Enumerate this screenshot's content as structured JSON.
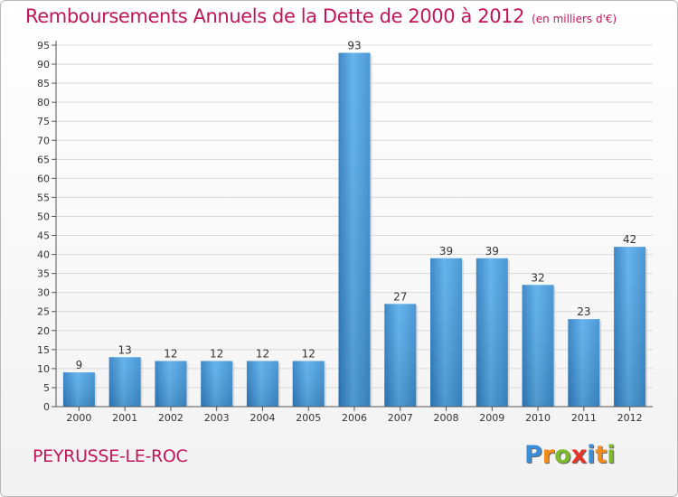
{
  "chart_data": {
    "type": "bar",
    "title": "Remboursements Annuels de la Dette de 2000 à 2012",
    "subtitle": "(en milliers d'€)",
    "categories": [
      "2000",
      "2001",
      "2002",
      "2003",
      "2004",
      "2005",
      "2006",
      "2007",
      "2008",
      "2009",
      "2010",
      "2011",
      "2012"
    ],
    "values": [
      9,
      13,
      12,
      12,
      12,
      12,
      93,
      27,
      39,
      39,
      32,
      23,
      42
    ],
    "ylim": [
      0,
      95
    ],
    "yticks": [
      0,
      5,
      10,
      15,
      20,
      25,
      30,
      35,
      40,
      45,
      50,
      55,
      60,
      65,
      70,
      75,
      80,
      85,
      90,
      95
    ],
    "xlabel": "",
    "ylabel": "",
    "grid": true,
    "bar_color": "#3d93d6"
  },
  "place_name": "PEYRUSSE-LE-ROC",
  "logo": {
    "letters": [
      "P",
      "r",
      "o",
      "x",
      "i",
      "t",
      "i"
    ],
    "colors": [
      "#3a8fd8",
      "#f28c1c",
      "#7dbb2c",
      "#e8332a",
      "#3a8fd8",
      "#f28c1c",
      "#7dbb2c"
    ]
  }
}
